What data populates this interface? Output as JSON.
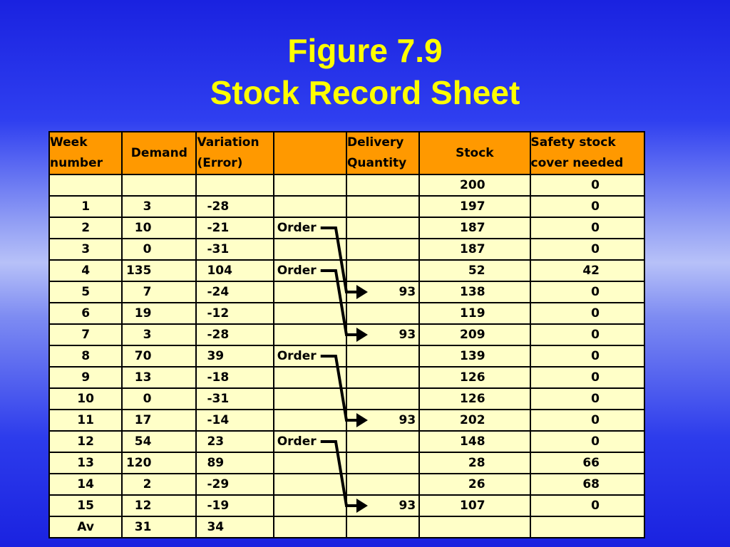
{
  "title": {
    "line1": "Figure 7.9",
    "line2": "Stock Record Sheet"
  },
  "table": {
    "headers": [
      "Week number",
      "Demand",
      "Variation (Error)",
      "",
      "Delivery Quantity",
      "Stock",
      "Safety stock cover needed"
    ],
    "rows": [
      {
        "week": "",
        "demand": "",
        "variation": "",
        "order": "",
        "delivery": "",
        "stock": "200",
        "safety": "0"
      },
      {
        "week": "1",
        "demand": "3",
        "variation": "-28",
        "order": "",
        "delivery": "",
        "stock": "197",
        "safety": "0"
      },
      {
        "week": "2",
        "demand": "10",
        "variation": "-21",
        "order": "Order",
        "delivery": "",
        "stock": "187",
        "safety": "0"
      },
      {
        "week": "3",
        "demand": "0",
        "variation": "-31",
        "order": "",
        "delivery": "",
        "stock": "187",
        "safety": "0"
      },
      {
        "week": "4",
        "demand": "135",
        "variation": "104",
        "order": "Order",
        "delivery": "",
        "stock": "52",
        "safety": "42"
      },
      {
        "week": "5",
        "demand": "7",
        "variation": "-24",
        "order": "",
        "delivery": "93",
        "stock": "138",
        "safety": "0"
      },
      {
        "week": "6",
        "demand": "19",
        "variation": "-12",
        "order": "",
        "delivery": "",
        "stock": "119",
        "safety": "0"
      },
      {
        "week": "7",
        "demand": "3",
        "variation": "-28",
        "order": "",
        "delivery": "93",
        "stock": "209",
        "safety": "0"
      },
      {
        "week": "8",
        "demand": "70",
        "variation": "39",
        "order": "Order",
        "delivery": "",
        "stock": "139",
        "safety": "0"
      },
      {
        "week": "9",
        "demand": "13",
        "variation": "-18",
        "order": "",
        "delivery": "",
        "stock": "126",
        "safety": "0"
      },
      {
        "week": "10",
        "demand": "0",
        "variation": "-31",
        "order": "",
        "delivery": "",
        "stock": "126",
        "safety": "0"
      },
      {
        "week": "11",
        "demand": "17",
        "variation": "-14",
        "order": "",
        "delivery": "93",
        "stock": "202",
        "safety": "0"
      },
      {
        "week": "12",
        "demand": "54",
        "variation": "23",
        "order": "Order",
        "delivery": "",
        "stock": "148",
        "safety": "0"
      },
      {
        "week": "13",
        "demand": "120",
        "variation": "89",
        "order": "",
        "delivery": "",
        "stock": "28",
        "safety": "66"
      },
      {
        "week": "14",
        "demand": "2",
        "variation": "-29",
        "order": "",
        "delivery": "",
        "stock": "26",
        "safety": "68"
      },
      {
        "week": "15",
        "demand": "12",
        "variation": "-19",
        "order": "",
        "delivery": "93",
        "stock": "107",
        "safety": "0"
      },
      {
        "week": "Av",
        "demand": "31",
        "variation": "34",
        "order": "",
        "delivery": "",
        "stock": "",
        "safety": ""
      }
    ]
  },
  "order_links": [
    {
      "from_week": "2",
      "to_week": "5"
    },
    {
      "from_week": "4",
      "to_week": "7"
    },
    {
      "from_week": "8",
      "to_week": "11"
    },
    {
      "from_week": "12",
      "to_week": "15"
    }
  ],
  "colors": {
    "header_bg": "#ff9900",
    "cell_bg": "#ffffc8",
    "title": "#ffff00",
    "background": "#2f3ff0"
  }
}
